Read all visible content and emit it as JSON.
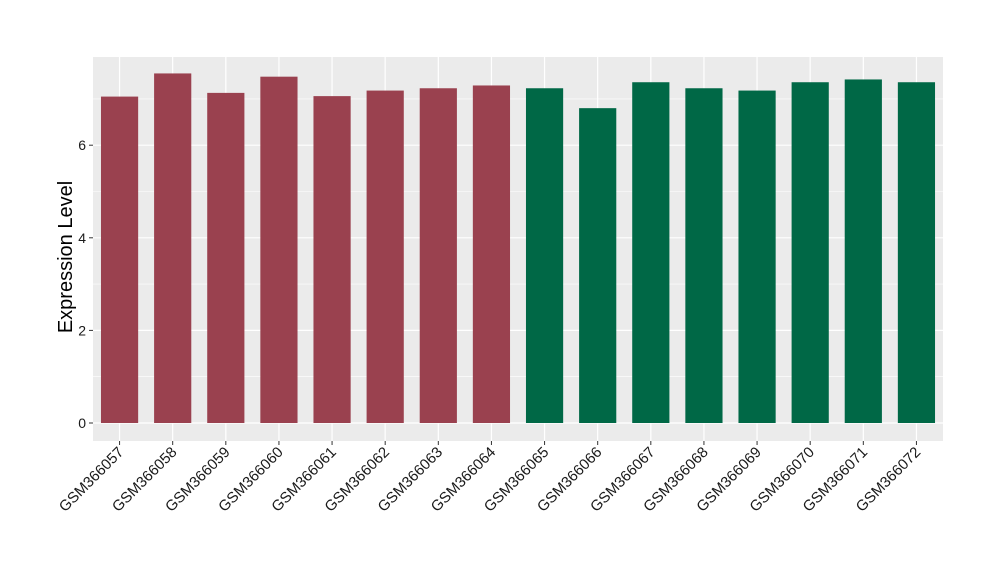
{
  "chart_data": {
    "type": "bar",
    "title": "",
    "xlabel": "",
    "ylabel": "Expression Level",
    "ylim": [
      0,
      7.95
    ],
    "y_ticks": [
      0,
      2,
      4,
      6
    ],
    "grid": true,
    "legend": "none",
    "categories": [
      "GSM366057",
      "GSM366058",
      "GSM366059",
      "GSM366060",
      "GSM366061",
      "GSM366062",
      "GSM366063",
      "GSM366064",
      "GSM366065",
      "GSM366066",
      "GSM366067",
      "GSM366068",
      "GSM366069",
      "GSM366070",
      "GSM366071",
      "GSM366072"
    ],
    "values": [
      7.05,
      7.55,
      7.13,
      7.48,
      7.06,
      7.18,
      7.23,
      7.29,
      7.23,
      6.8,
      7.36,
      7.23,
      7.18,
      7.36,
      7.42,
      7.36
    ],
    "bar_colors": [
      "#9a414f",
      "#9a414f",
      "#9a414f",
      "#9a414f",
      "#9a414f",
      "#9a414f",
      "#9a414f",
      "#9a414f",
      "#006846",
      "#006846",
      "#006846",
      "#006846",
      "#006846",
      "#006846",
      "#006846",
      "#006846"
    ],
    "panel_background": "#ebebeb",
    "grid_color": "#ffffff"
  }
}
